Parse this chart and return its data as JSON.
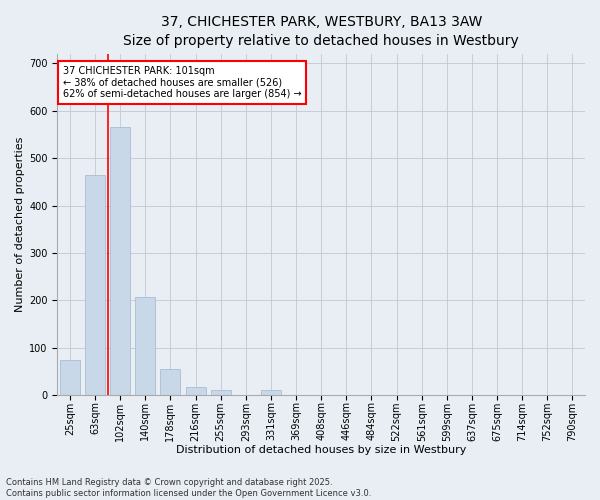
{
  "title": "37, CHICHESTER PARK, WESTBURY, BA13 3AW",
  "subtitle": "Size of property relative to detached houses in Westbury",
  "xlabel": "Distribution of detached houses by size in Westbury",
  "ylabel": "Number of detached properties",
  "categories": [
    "25sqm",
    "63sqm",
    "102sqm",
    "140sqm",
    "178sqm",
    "216sqm",
    "255sqm",
    "293sqm",
    "331sqm",
    "369sqm",
    "408sqm",
    "446sqm",
    "484sqm",
    "522sqm",
    "561sqm",
    "599sqm",
    "637sqm",
    "675sqm",
    "714sqm",
    "752sqm",
    "790sqm"
  ],
  "values": [
    75,
    465,
    565,
    207,
    55,
    18,
    10,
    0,
    10,
    0,
    0,
    0,
    0,
    0,
    0,
    0,
    0,
    0,
    0,
    0,
    0
  ],
  "bar_color": "#c8d8e8",
  "bar_edgecolor": "#a0b8cc",
  "grid_color": "#c0c8d8",
  "background_color": "#e8eef4",
  "vline_x": 1.5,
  "vline_color": "red",
  "annotation_text": "37 CHICHESTER PARK: 101sqm\n← 38% of detached houses are smaller (526)\n62% of semi-detached houses are larger (854) →",
  "annotation_box_color": "white",
  "annotation_box_edgecolor": "red",
  "ylim": [
    0,
    720
  ],
  "yticks": [
    0,
    100,
    200,
    300,
    400,
    500,
    600,
    700
  ],
  "footnote": "Contains HM Land Registry data © Crown copyright and database right 2025.\nContains public sector information licensed under the Open Government Licence v3.0.",
  "title_fontsize": 10,
  "subtitle_fontsize": 9,
  "axis_fontsize": 8,
  "tick_fontsize": 7,
  "annotation_fontsize": 7,
  "footnote_fontsize": 6,
  "ylabel_fontsize": 8
}
